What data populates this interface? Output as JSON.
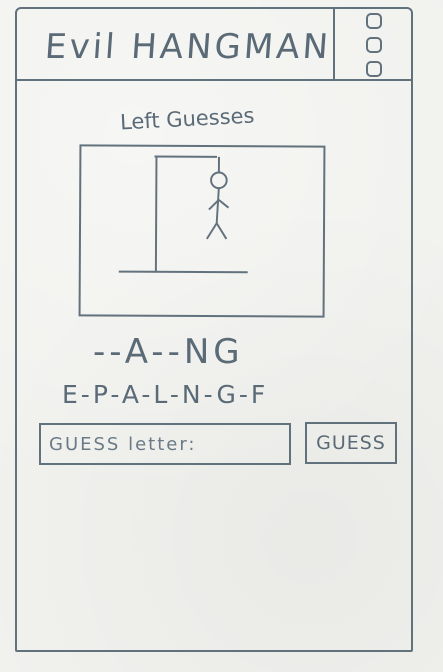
{
  "app": {
    "title": "Evil HANGMAN"
  },
  "menu": {
    "icon": "menu-icon"
  },
  "hangman": {
    "label": "Left Guesses"
  },
  "game": {
    "word_pattern": "--A--NG",
    "guessed_letters": "E-P-A-L-N-G-F"
  },
  "guess": {
    "placeholder": "GUESS letter:",
    "button_label": "GUESS"
  }
}
